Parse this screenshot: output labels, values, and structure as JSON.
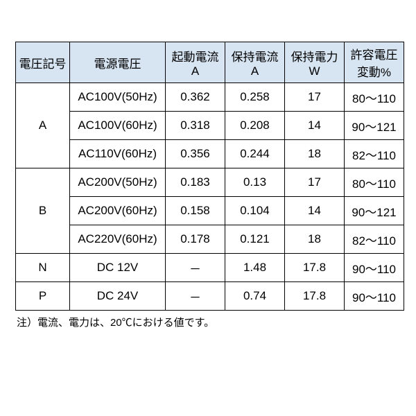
{
  "table": {
    "header_bg": "#d7e4f2",
    "border_color": "#000000",
    "columns": [
      {
        "line1": "電圧記号",
        "line2": ""
      },
      {
        "line1": "電源電圧",
        "line2": ""
      },
      {
        "line1": "起動電流",
        "line2": "A"
      },
      {
        "line1": "保持電流",
        "line2": "A"
      },
      {
        "line1": "保持電力",
        "line2": "W"
      },
      {
        "line1": "許容電圧",
        "line2": "変動%"
      }
    ],
    "groups": [
      {
        "label": "A",
        "rows": [
          {
            "supply": "AC100V(50Hz)",
            "start": "0.362",
            "hold_a": "0.258",
            "hold_w": "17",
            "tol": "80～110"
          },
          {
            "supply": "AC100V(60Hz)",
            "start": "0.318",
            "hold_a": "0.208",
            "hold_w": "14",
            "tol": "90～121"
          },
          {
            "supply": "AC110V(60Hz)",
            "start": "0.356",
            "hold_a": "0.244",
            "hold_w": "18",
            "tol": "82～110"
          }
        ]
      },
      {
        "label": "B",
        "rows": [
          {
            "supply": "AC200V(50Hz)",
            "start": "0.183",
            "hold_a": "0.13",
            "hold_w": "17",
            "tol": "80～110"
          },
          {
            "supply": "AC200V(60Hz)",
            "start": "0.158",
            "hold_a": "0.104",
            "hold_w": "14",
            "tol": "90～121"
          },
          {
            "supply": "AC220V(60Hz)",
            "start": "0.178",
            "hold_a": "0.121",
            "hold_w": "18",
            "tol": "82～110"
          }
        ]
      },
      {
        "label": "N",
        "rows": [
          {
            "supply": "DC  12V",
            "start": "－",
            "hold_a": "1.48",
            "hold_w": "17.8",
            "tol": "90～110"
          }
        ]
      },
      {
        "label": "P",
        "rows": [
          {
            "supply": "DC  24V",
            "start": "－",
            "hold_a": "0.74",
            "hold_w": "17.8",
            "tol": "90～110"
          }
        ]
      }
    ]
  },
  "note": "注）電流、電力は、20℃における値です。"
}
